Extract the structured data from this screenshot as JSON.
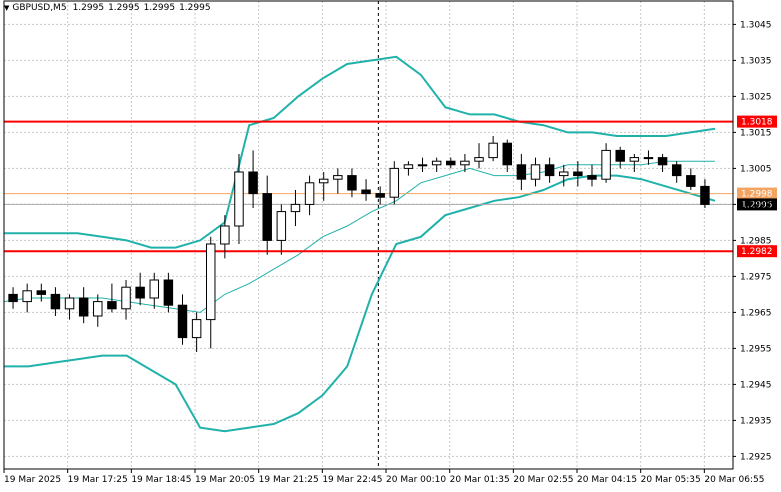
{
  "header": {
    "symbol": "GBPUSD,M5",
    "open": "1.2995",
    "high": "1.2995",
    "low": "1.2995",
    "close": "1.2995"
  },
  "colors": {
    "background": "#ffffff",
    "grid": "#c8c8c8",
    "candle": "#000000",
    "bollinger": "#20b2aa",
    "level_line": "#ff0000",
    "current_price_line": "#f4a460",
    "current_price_label": "#000000"
  },
  "price_levels": [
    {
      "label": "1.3018",
      "value": 1.3018
    },
    {
      "label": "1.2982",
      "value": 1.2982
    }
  ],
  "current_price_markers": [
    {
      "label": "1.2998",
      "value": 1.2998
    },
    {
      "label": "1.2995",
      "value": 1.2995
    }
  ],
  "chart_data": {
    "type": "candlestick",
    "y_ticks": [
      "1.3045",
      "1.3035",
      "1.3025",
      "1.3015",
      "1.3005",
      "1.2995",
      "1.2985",
      "1.2975",
      "1.2965",
      "1.2955",
      "1.2945",
      "1.2935",
      "1.2925"
    ],
    "x_ticks": [
      "19 Mar 2025",
      "19 Mar 17:25",
      "19 Mar 18:45",
      "19 Mar 20:05",
      "19 Mar 21:25",
      "19 Mar 22:45",
      "20 Mar 00:10",
      "20 Mar 01:35",
      "20 Mar 02:55",
      "20 Mar 04:15",
      "20 Mar 05:35",
      "20 Mar 06:55"
    ],
    "ylim": [
      1.29215,
      1.30515
    ],
    "grid": true,
    "indicator": "Bollinger Bands",
    "bollinger_upper": [
      1.2987,
      1.2987,
      1.2987,
      1.2987,
      1.2986,
      1.2985,
      1.2983,
      1.2983,
      1.2985,
      1.299,
      1.3017,
      1.3019,
      1.3025,
      1.303,
      1.3034,
      1.3035,
      1.3036,
      1.3031,
      1.3022,
      1.302,
      1.302,
      1.3018,
      1.3017,
      1.3015,
      1.3015,
      1.3014,
      1.3014,
      1.3014,
      1.3015,
      1.3016
    ],
    "bollinger_middle": [
      1.2968,
      1.2969,
      1.2969,
      1.2969,
      1.2969,
      1.2968,
      1.2967,
      1.2966,
      1.2965,
      1.297,
      1.2973,
      1.2977,
      1.2981,
      1.2986,
      1.2989,
      1.2993,
      1.2996,
      1.3001,
      1.3003,
      1.3005,
      1.3003,
      1.3003,
      1.3004,
      1.3006,
      1.3006,
      1.3006,
      1.3006,
      1.3007,
      1.3007,
      1.3007
    ],
    "bollinger_lower": [
      1.295,
      1.295,
      1.2951,
      1.2952,
      1.2953,
      1.2953,
      1.2949,
      1.2945,
      1.2933,
      1.2932,
      1.2933,
      1.2934,
      1.2937,
      1.2942,
      1.295,
      1.297,
      1.2984,
      1.2986,
      1.2992,
      1.2994,
      1.2996,
      1.2997,
      1.2999,
      1.3002,
      1.3003,
      1.3003,
      1.3002,
      1.3,
      1.2998,
      1.2996
    ],
    "candles": [
      {
        "o": 1.297,
        "h": 1.2972,
        "l": 1.2966,
        "c": 1.2968
      },
      {
        "o": 1.2968,
        "h": 1.2973,
        "l": 1.2965,
        "c": 1.2971
      },
      {
        "o": 1.2971,
        "h": 1.2973,
        "l": 1.2968,
        "c": 1.297
      },
      {
        "o": 1.297,
        "h": 1.2972,
        "l": 1.2964,
        "c": 1.2966
      },
      {
        "o": 1.2966,
        "h": 1.297,
        "l": 1.2963,
        "c": 1.2969
      },
      {
        "o": 1.2969,
        "h": 1.2972,
        "l": 1.2962,
        "c": 1.2964
      },
      {
        "o": 1.2964,
        "h": 1.297,
        "l": 1.2961,
        "c": 1.2968
      },
      {
        "o": 1.2968,
        "h": 1.2973,
        "l": 1.2965,
        "c": 1.2966
      },
      {
        "o": 1.2966,
        "h": 1.2974,
        "l": 1.2963,
        "c": 1.2972
      },
      {
        "o": 1.2972,
        "h": 1.2976,
        "l": 1.2967,
        "c": 1.2969
      },
      {
        "o": 1.2969,
        "h": 1.2976,
        "l": 1.2966,
        "c": 1.2974
      },
      {
        "o": 1.2974,
        "h": 1.2976,
        "l": 1.2965,
        "c": 1.2967
      },
      {
        "o": 1.2967,
        "h": 1.297,
        "l": 1.2956,
        "c": 1.2958
      },
      {
        "o": 1.2958,
        "h": 1.2965,
        "l": 1.2954,
        "c": 1.2963
      },
      {
        "o": 1.2963,
        "h": 1.2986,
        "l": 1.2955,
        "c": 1.2984
      },
      {
        "o": 1.2984,
        "h": 1.2992,
        "l": 1.298,
        "c": 1.2989
      },
      {
        "o": 1.2989,
        "h": 1.3009,
        "l": 1.2984,
        "c": 1.3004
      },
      {
        "o": 1.3004,
        "h": 1.301,
        "l": 1.2994,
        "c": 1.2998
      },
      {
        "o": 1.2998,
        "h": 1.3003,
        "l": 1.2981,
        "c": 1.2985
      },
      {
        "o": 1.2985,
        "h": 1.2995,
        "l": 1.2981,
        "c": 1.2993
      },
      {
        "o": 1.2993,
        "h": 1.2999,
        "l": 1.2989,
        "c": 1.2995
      },
      {
        "o": 1.2995,
        "h": 1.3003,
        "l": 1.2992,
        "c": 1.3001
      },
      {
        "o": 1.3001,
        "h": 1.3004,
        "l": 1.2996,
        "c": 1.3002
      },
      {
        "o": 1.3002,
        "h": 1.3005,
        "l": 1.2998,
        "c": 1.3003
      },
      {
        "o": 1.3003,
        "h": 1.3005,
        "l": 1.2997,
        "c": 1.2999
      },
      {
        "o": 1.2999,
        "h": 1.3002,
        "l": 1.2996,
        "c": 1.2998
      },
      {
        "o": 1.2998,
        "h": 1.3,
        "l": 1.2995,
        "c": 1.2997
      },
      {
        "o": 1.2997,
        "h": 1.3007,
        "l": 1.2995,
        "c": 1.3005
      },
      {
        "o": 1.3005,
        "h": 1.3007,
        "l": 1.3003,
        "c": 1.3006
      },
      {
        "o": 1.3006,
        "h": 1.3008,
        "l": 1.3004,
        "c": 1.3006
      },
      {
        "o": 1.3006,
        "h": 1.3008,
        "l": 1.3004,
        "c": 1.3007
      },
      {
        "o": 1.3007,
        "h": 1.3008,
        "l": 1.3005,
        "c": 1.3006
      },
      {
        "o": 1.3006,
        "h": 1.3009,
        "l": 1.3004,
        "c": 1.3007
      },
      {
        "o": 1.3007,
        "h": 1.3012,
        "l": 1.3005,
        "c": 1.3008
      },
      {
        "o": 1.3008,
        "h": 1.3014,
        "l": 1.3007,
        "c": 1.3012
      },
      {
        "o": 1.3012,
        "h": 1.3013,
        "l": 1.3004,
        "c": 1.3006
      },
      {
        "o": 1.3006,
        "h": 1.3009,
        "l": 1.2999,
        "c": 1.3002
      },
      {
        "o": 1.3002,
        "h": 1.3008,
        "l": 1.3,
        "c": 1.3006
      },
      {
        "o": 1.3006,
        "h": 1.3008,
        "l": 1.3001,
        "c": 1.3003
      },
      {
        "o": 1.3003,
        "h": 1.3006,
        "l": 1.3,
        "c": 1.3004
      },
      {
        "o": 1.3004,
        "h": 1.3007,
        "l": 1.3,
        "c": 1.3003
      },
      {
        "o": 1.3003,
        "h": 1.3006,
        "l": 1.3,
        "c": 1.3002
      },
      {
        "o": 1.3002,
        "h": 1.3012,
        "l": 1.3001,
        "c": 1.301
      },
      {
        "o": 1.301,
        "h": 1.3011,
        "l": 1.3005,
        "c": 1.3007
      },
      {
        "o": 1.3007,
        "h": 1.3009,
        "l": 1.3004,
        "c": 1.3008
      },
      {
        "o": 1.3008,
        "h": 1.301,
        "l": 1.3006,
        "c": 1.3008
      },
      {
        "o": 1.3008,
        "h": 1.3009,
        "l": 1.3004,
        "c": 1.3006
      },
      {
        "o": 1.3006,
        "h": 1.3007,
        "l": 1.3001,
        "c": 1.3003
      },
      {
        "o": 1.3003,
        "h": 1.3005,
        "l": 1.2999,
        "c": 1.3
      },
      {
        "o": 1.3,
        "h": 1.3002,
        "l": 1.2994,
        "c": 1.2995
      }
    ]
  }
}
